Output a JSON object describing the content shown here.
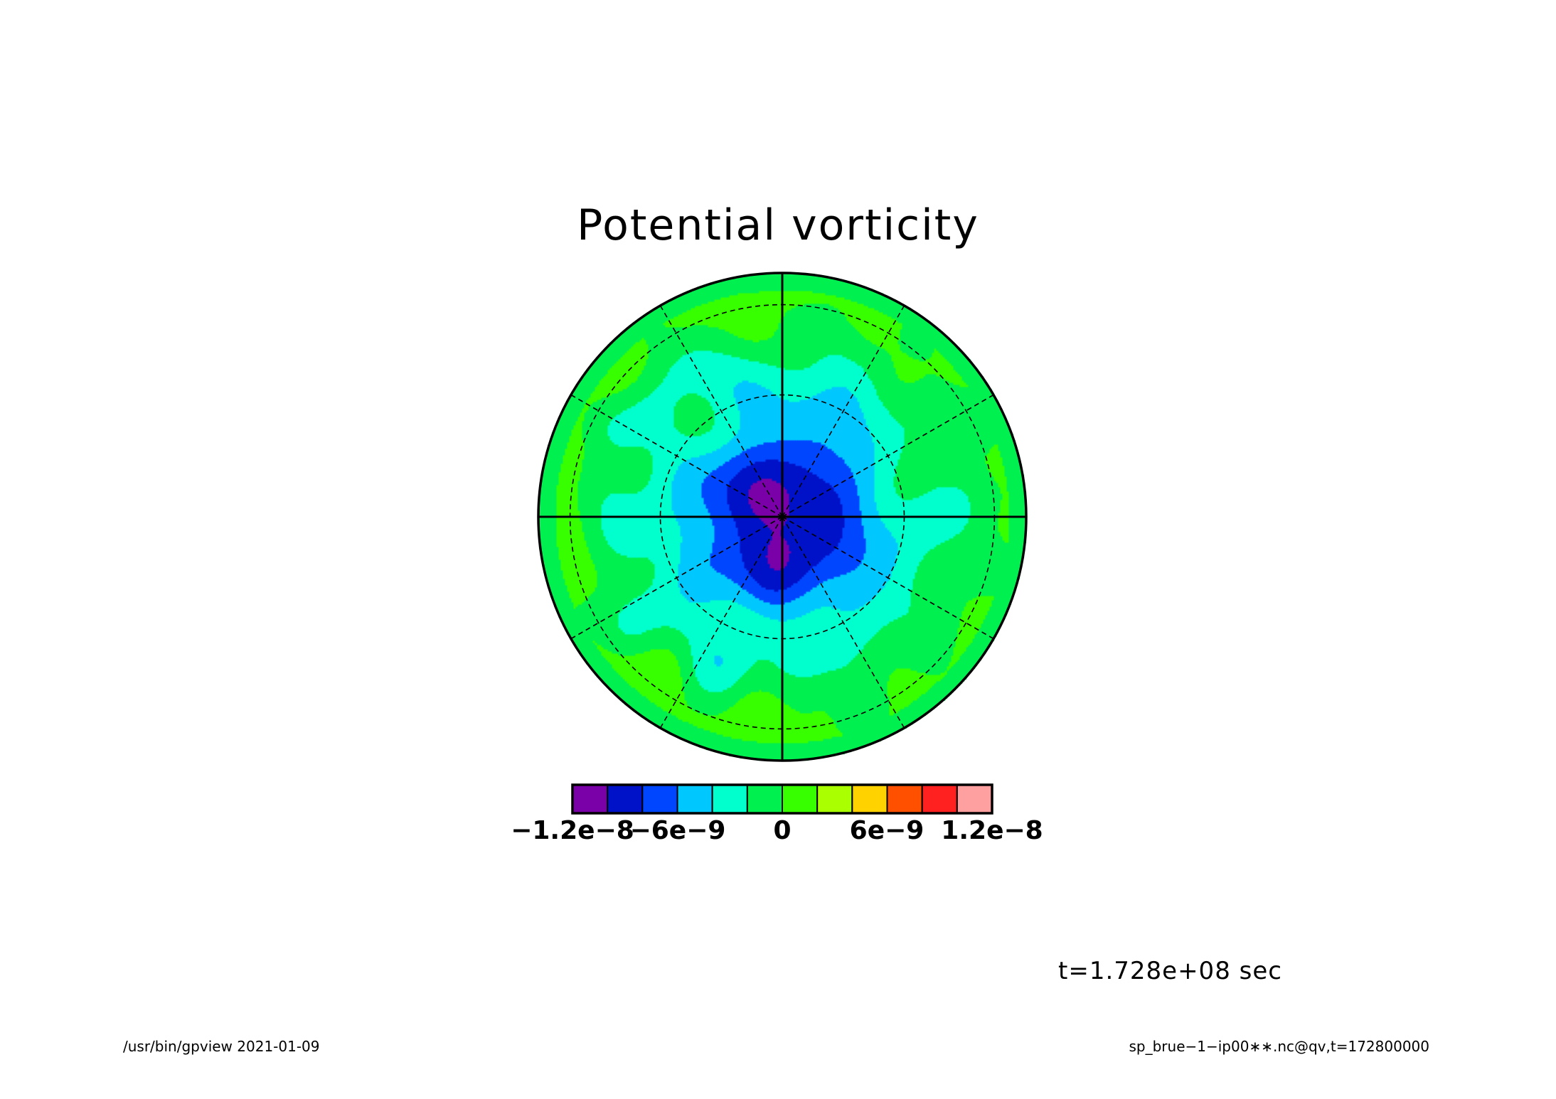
{
  "chart_data": {
    "type": "heatmap",
    "projection": "polar stereographic",
    "title": "Potential vorticity",
    "colorbar": {
      "levels": [
        -1.2e-08,
        -1e-08,
        -8e-09,
        -6e-09,
        -4e-09,
        -2e-09,
        0,
        2e-09,
        4e-09,
        6e-09,
        8e-09,
        1e-08,
        1.2e-08
      ],
      "colors": [
        "#7a00a8",
        "#0012c8",
        "#0046ff",
        "#00c8ff",
        "#00ffcc",
        "#00f050",
        "#38ff00",
        "#aaff00",
        "#ffd200",
        "#ff5000",
        "#ff2020",
        "#ffa0a0"
      ],
      "tick_labels": [
        "−1.2e−8",
        "−6e−9",
        "0",
        "6e−9",
        "1.2e−8"
      ],
      "tick_values": [
        -1.2e-08,
        -6e-09,
        0,
        6e-09,
        1.2e-08
      ]
    },
    "grid": true,
    "value_range": [
      -1.2e-08,
      1.2e-08
    ]
  },
  "annotations": {
    "time_label": "t=1.728e+08 sec",
    "footer_left": "/usr/bin/gpview   2021-01-09",
    "footer_right": "sp_brue−1−ip00∗∗.nc@qv,t=172800000"
  }
}
